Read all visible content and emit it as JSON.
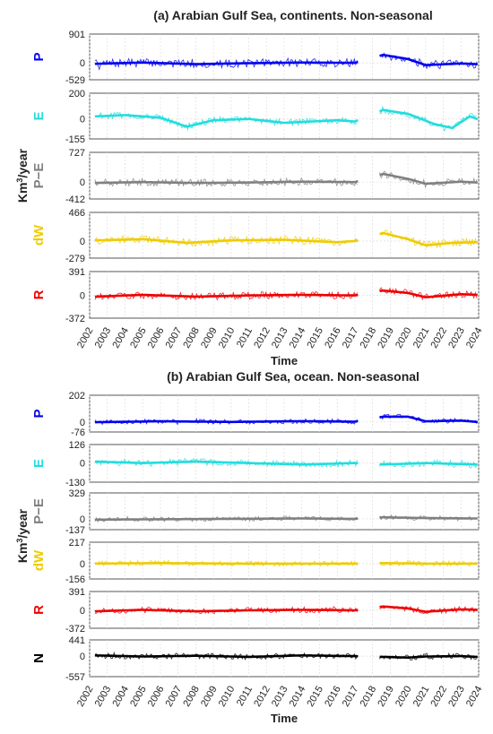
{
  "figure": {
    "unit_label_main": "Km",
    "unit_label_sup": "3",
    "unit_label_tail": "/year",
    "xlabel": "Time",
    "x_ticks": [
      "2002",
      "2003",
      "2004",
      "2005",
      "2006",
      "2007",
      "2008",
      "2009",
      "2010",
      "2011",
      "2012",
      "2013",
      "2014",
      "2015",
      "2016",
      "2017",
      "2018",
      "2019",
      "2020",
      "2021",
      "2022",
      "2023",
      "2024"
    ],
    "gap": [
      2017.2,
      2018.4
    ]
  },
  "chart_data": [
    {
      "type": "line",
      "title": "(a) Arabian Gulf Sea, continents. Non-seasonal",
      "xlabel": "Time",
      "xlim": [
        2002,
        2024
      ],
      "grid": true,
      "series": [
        {
          "name": "P",
          "color": "#0000ee",
          "ylim": [
            -529,
            901
          ],
          "ticks": [
            "901",
            "0",
            "-529"
          ],
          "amp": 220,
          "smooth_amp": 60,
          "smooth_points": [
            [
              2002.3,
              -30
            ],
            [
              2005,
              10
            ],
            [
              2008,
              -40
            ],
            [
              2011,
              -10
            ],
            [
              2014,
              10
            ],
            [
              2017,
              0
            ],
            [
              2018.6,
              250
            ],
            [
              2020,
              120
            ],
            [
              2021,
              -70
            ],
            [
              2023,
              -20
            ],
            [
              2023.9,
              -40
            ]
          ]
        },
        {
          "name": "E",
          "color": "#22dddd",
          "ylim": [
            -155,
            200
          ],
          "ticks": [
            "200",
            "0",
            "-155"
          ],
          "amp": 45,
          "smooth_amp": 15,
          "smooth_points": [
            [
              2002.3,
              20
            ],
            [
              2004,
              30
            ],
            [
              2006,
              10
            ],
            [
              2007.5,
              -60
            ],
            [
              2009,
              -10
            ],
            [
              2011,
              0
            ],
            [
              2013,
              -30
            ],
            [
              2016,
              -10
            ],
            [
              2017,
              -20
            ],
            [
              2018.6,
              70
            ],
            [
              2020,
              40
            ],
            [
              2021.5,
              -40
            ],
            [
              2022.5,
              -70
            ],
            [
              2023.5,
              20
            ],
            [
              2023.9,
              0
            ]
          ]
        },
        {
          "name": "P−E",
          "color": "#808080",
          "ylim": [
            -412,
            727
          ],
          "ticks": [
            "727",
            "0",
            "-412"
          ],
          "amp": 150,
          "smooth_amp": 40,
          "smooth_points": [
            [
              2002.3,
              -20
            ],
            [
              2005,
              0
            ],
            [
              2008,
              -20
            ],
            [
              2011,
              -10
            ],
            [
              2014,
              10
            ],
            [
              2017,
              0
            ],
            [
              2018.6,
              200
            ],
            [
              2020,
              80
            ],
            [
              2021,
              -40
            ],
            [
              2023,
              10
            ],
            [
              2023.9,
              -10
            ]
          ]
        },
        {
          "name": "dW",
          "color": "#eecc00",
          "ylim": [
            -279,
            466
          ],
          "ticks": [
            "466",
            "0",
            "-279"
          ],
          "amp": 110,
          "smooth_amp": 30,
          "smooth_points": [
            [
              2002.3,
              10
            ],
            [
              2005,
              30
            ],
            [
              2007.5,
              -30
            ],
            [
              2010,
              10
            ],
            [
              2013,
              20
            ],
            [
              2016,
              -20
            ],
            [
              2017,
              0
            ],
            [
              2018.6,
              130
            ],
            [
              2020,
              30
            ],
            [
              2021,
              -70
            ],
            [
              2022.5,
              -30
            ],
            [
              2023.9,
              -20
            ]
          ]
        },
        {
          "name": "R",
          "color": "#ee0000",
          "ylim": [
            -372,
            391
          ],
          "ticks": [
            "391",
            "0",
            "-372"
          ],
          "amp": 100,
          "smooth_amp": 25,
          "smooth_points": [
            [
              2002.3,
              -20
            ],
            [
              2005,
              10
            ],
            [
              2008,
              -20
            ],
            [
              2011,
              0
            ],
            [
              2014,
              10
            ],
            [
              2017,
              0
            ],
            [
              2018.6,
              80
            ],
            [
              2020,
              40
            ],
            [
              2021,
              -30
            ],
            [
              2023,
              20
            ],
            [
              2023.9,
              10
            ]
          ]
        }
      ]
    },
    {
      "type": "line",
      "title": "(b) Arabian Gulf Sea, ocean. Non-seasonal",
      "xlabel": "Time",
      "xlim": [
        2002,
        2024
      ],
      "grid": true,
      "series": [
        {
          "name": "P",
          "color": "#0000ee",
          "ylim": [
            -76,
            202
          ],
          "ticks": [
            "202",
            "0",
            "-76"
          ],
          "amp": 30,
          "smooth_amp": 6,
          "smooth_points": [
            [
              2002.3,
              -2
            ],
            [
              2006,
              5
            ],
            [
              2010,
              0
            ],
            [
              2014,
              6
            ],
            [
              2017,
              2
            ],
            [
              2018.6,
              40
            ],
            [
              2020,
              40
            ],
            [
              2021,
              5
            ],
            [
              2023,
              10
            ],
            [
              2023.9,
              0
            ]
          ]
        },
        {
          "name": "E",
          "color": "#22dddd",
          "ylim": [
            -130,
            126
          ],
          "ticks": [
            "126",
            "0",
            "-130"
          ],
          "amp": 40,
          "smooth_amp": 10,
          "smooth_points": [
            [
              2002.3,
              10
            ],
            [
              2005,
              0
            ],
            [
              2008,
              10
            ],
            [
              2011,
              0
            ],
            [
              2014,
              -10
            ],
            [
              2017,
              0
            ],
            [
              2018.6,
              -10
            ],
            [
              2021,
              0
            ],
            [
              2023.9,
              -10
            ]
          ]
        },
        {
          "name": "P−E",
          "color": "#808080",
          "ylim": [
            -137,
            329
          ],
          "ticks": [
            "329",
            "0",
            "-137"
          ],
          "amp": 50,
          "smooth_amp": 10,
          "smooth_points": [
            [
              2002.3,
              -10
            ],
            [
              2006,
              -5
            ],
            [
              2010,
              0
            ],
            [
              2014,
              5
            ],
            [
              2017,
              0
            ],
            [
              2018.6,
              20
            ],
            [
              2021,
              10
            ],
            [
              2023.9,
              5
            ]
          ]
        },
        {
          "name": "dW",
          "color": "#eecc00",
          "ylim": [
            -156,
            217
          ],
          "ticks": [
            "217",
            "0",
            "-156"
          ],
          "amp": 45,
          "smooth_amp": 8,
          "smooth_points": [
            [
              2002.3,
              0
            ],
            [
              2006,
              5
            ],
            [
              2010,
              0
            ],
            [
              2014,
              0
            ],
            [
              2017,
              0
            ],
            [
              2018.6,
              5
            ],
            [
              2021,
              0
            ],
            [
              2023.9,
              0
            ]
          ]
        },
        {
          "name": "R",
          "color": "#ee0000",
          "ylim": [
            -372,
            391
          ],
          "ticks": [
            "391",
            "0",
            "-372"
          ],
          "amp": 100,
          "smooth_amp": 25,
          "smooth_points": [
            [
              2002.3,
              -20
            ],
            [
              2005,
              10
            ],
            [
              2008,
              -20
            ],
            [
              2011,
              0
            ],
            [
              2014,
              10
            ],
            [
              2017,
              0
            ],
            [
              2018.6,
              80
            ],
            [
              2020,
              40
            ],
            [
              2021,
              -30
            ],
            [
              2023,
              20
            ],
            [
              2023.9,
              10
            ]
          ]
        },
        {
          "name": "N",
          "color": "#000000",
          "ylim": [
            -557,
            441
          ],
          "ticks": [
            "441",
            "0",
            "-557"
          ],
          "amp": 130,
          "smooth_amp": 30,
          "smooth_points": [
            [
              2002.3,
              20
            ],
            [
              2005,
              -10
            ],
            [
              2008,
              10
            ],
            [
              2011,
              -20
            ],
            [
              2014,
              20
            ],
            [
              2017,
              0
            ],
            [
              2018.6,
              -20
            ],
            [
              2020,
              -40
            ],
            [
              2021,
              -10
            ],
            [
              2023,
              0
            ],
            [
              2023.9,
              -20
            ]
          ]
        }
      ]
    }
  ]
}
